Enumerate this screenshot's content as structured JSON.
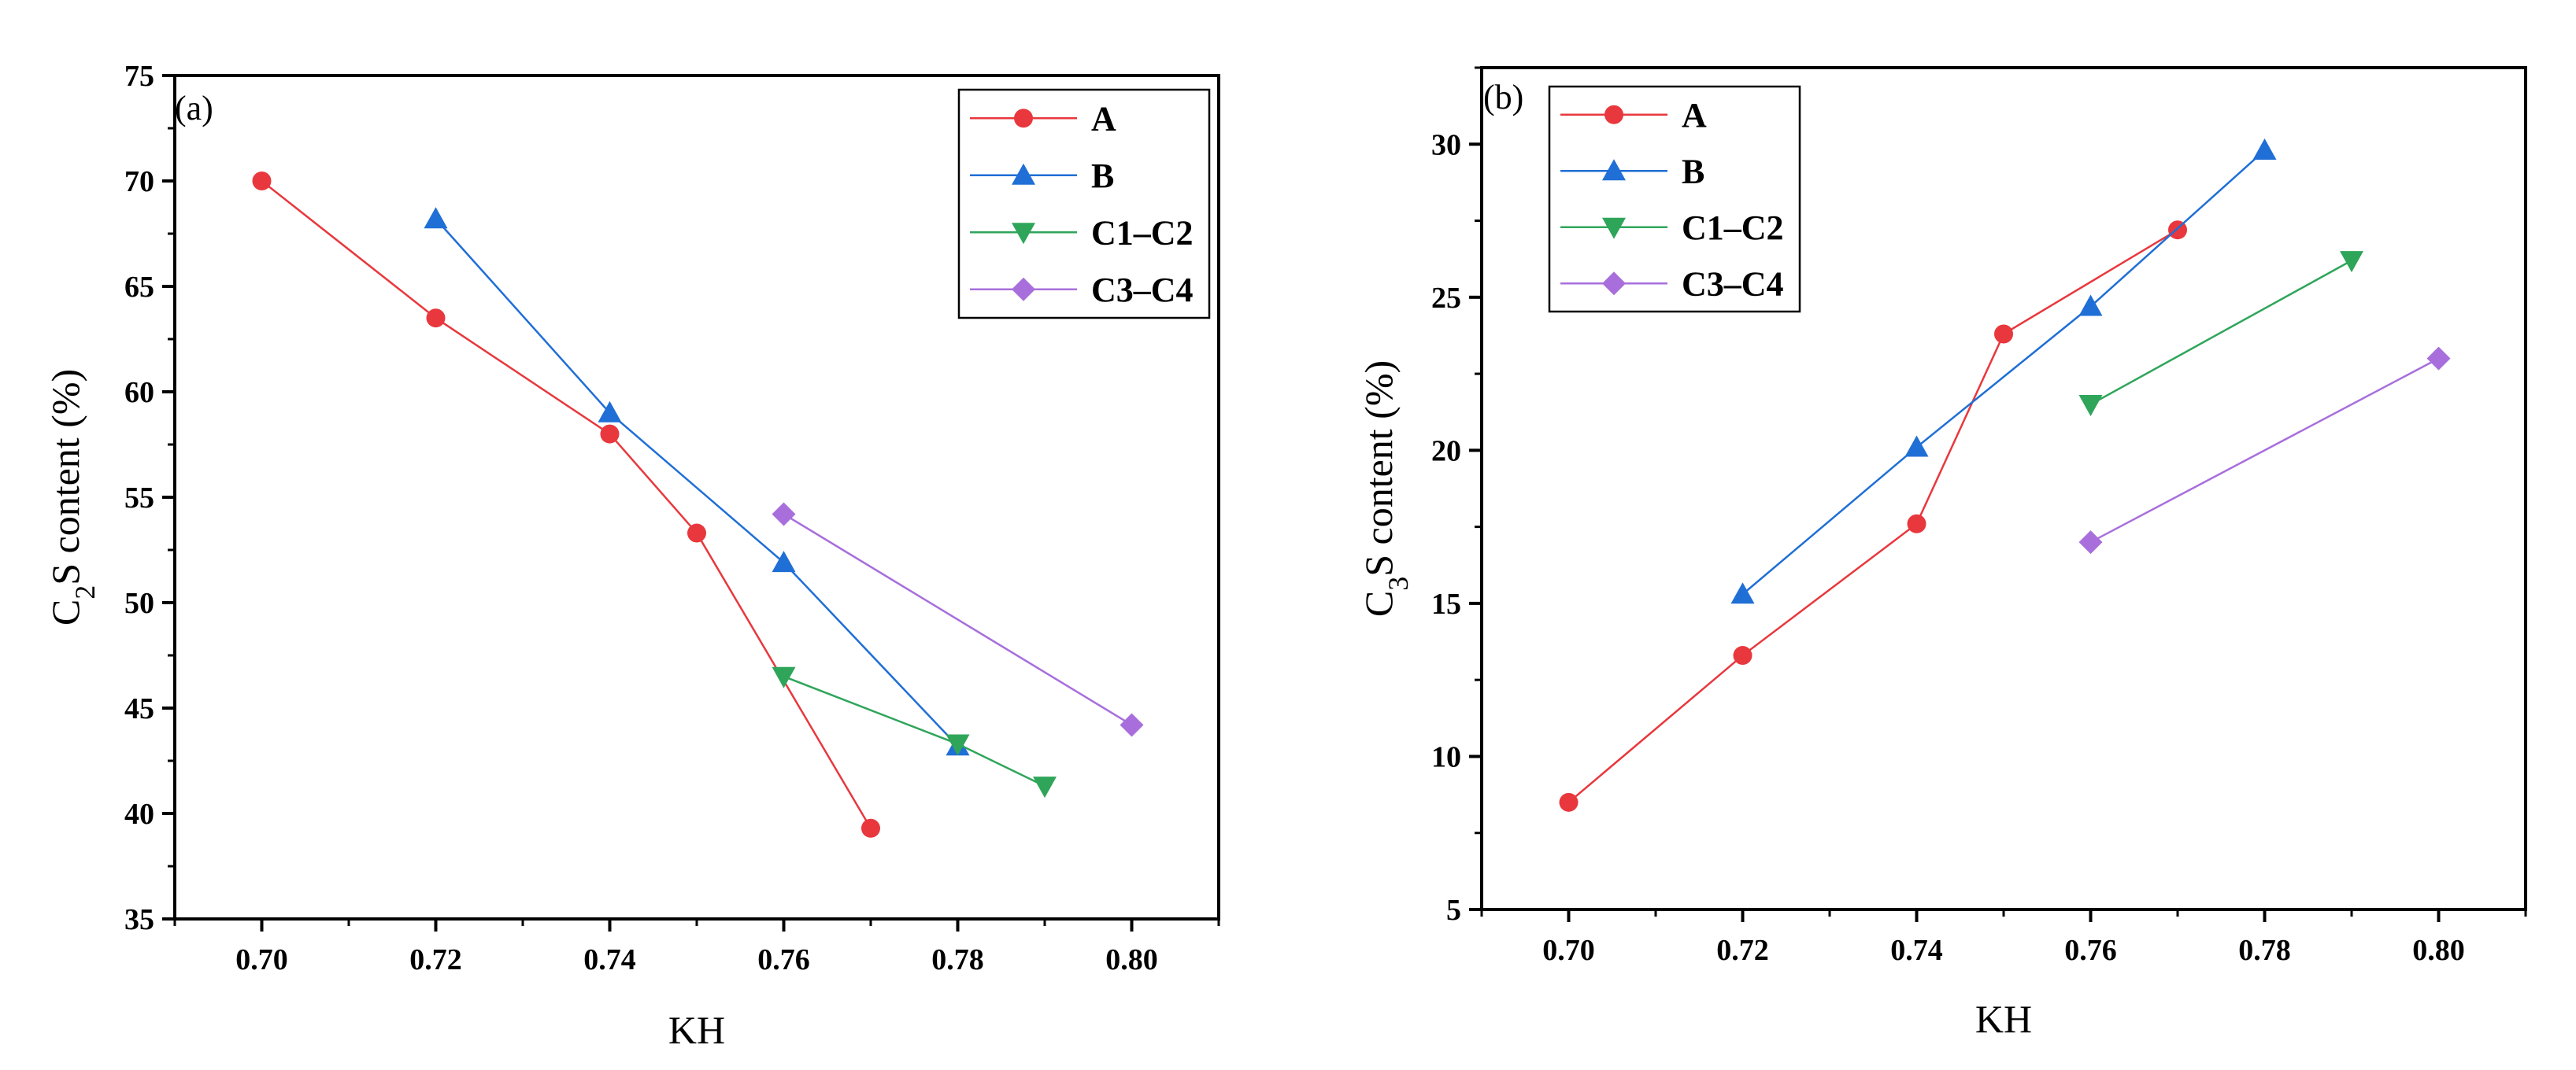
{
  "chart_data": [
    {
      "type": "line",
      "panel_label": "(a)",
      "xlabel": "KH",
      "ylabel": {
        "base": "C",
        "sub": "2",
        "rest": "S content (%)"
      },
      "xlim": [
        0.69,
        0.81
      ],
      "ylim": [
        35,
        75
      ],
      "xticks": [
        0.7,
        0.72,
        0.74,
        0.76,
        0.78,
        0.8
      ],
      "xtick_labels": [
        "0.70",
        "0.72",
        "0.74",
        "0.76",
        "0.78",
        "0.80"
      ],
      "yticks": [
        35,
        40,
        45,
        50,
        55,
        60,
        65,
        70,
        75
      ],
      "ytick_labels": [
        "35",
        "40",
        "45",
        "50",
        "55",
        "60",
        "65",
        "70",
        "75"
      ],
      "legend_position": "top-right",
      "series": [
        {
          "name": "A",
          "marker": "circle",
          "color": "#e8383d",
          "x": [
            0.7,
            0.72,
            0.74,
            0.75,
            0.77
          ],
          "y": [
            70.0,
            63.5,
            58.0,
            53.3,
            39.3
          ]
        },
        {
          "name": "B",
          "marker": "triangle-up",
          "color": "#1f6fd6",
          "x": [
            0.72,
            0.74,
            0.76,
            0.78
          ],
          "y": [
            68.2,
            59.0,
            51.9,
            43.2
          ]
        },
        {
          "name": "C1–C2",
          "marker": "triangle-down",
          "color": "#2fa55a",
          "x": [
            0.76,
            0.78,
            0.79
          ],
          "y": [
            46.5,
            43.3,
            41.3
          ]
        },
        {
          "name": "C3–C4",
          "marker": "diamond",
          "color": "#a86fdc",
          "x": [
            0.76,
            0.8
          ],
          "y": [
            54.2,
            44.2
          ]
        }
      ]
    },
    {
      "type": "line",
      "panel_label": "(b)",
      "xlabel": "KH",
      "ylabel": {
        "base": "C",
        "sub": "3",
        "rest": "S content (%)"
      },
      "xlim": [
        0.69,
        0.81
      ],
      "ylim": [
        5,
        32.5
      ],
      "xticks": [
        0.7,
        0.72,
        0.74,
        0.76,
        0.78,
        0.8
      ],
      "xtick_labels": [
        "0.70",
        "0.72",
        "0.74",
        "0.76",
        "0.78",
        "0.80"
      ],
      "yticks": [
        5,
        10,
        15,
        20,
        25,
        30
      ],
      "ytick_labels": [
        "5",
        "10",
        "15",
        "20",
        "25",
        "30"
      ],
      "legend_position": "top-left",
      "series": [
        {
          "name": "A",
          "marker": "circle",
          "color": "#e8383d",
          "x": [
            0.7,
            0.72,
            0.74,
            0.75,
            0.77
          ],
          "y": [
            8.5,
            13.3,
            17.6,
            23.8,
            27.2
          ]
        },
        {
          "name": "B",
          "marker": "triangle-up",
          "color": "#1f6fd6",
          "x": [
            0.72,
            0.74,
            0.76,
            0.78
          ],
          "y": [
            15.3,
            20.1,
            24.7,
            29.8
          ]
        },
        {
          "name": "C1–C2",
          "marker": "triangle-down",
          "color": "#2fa55a",
          "x": [
            0.76,
            0.79
          ],
          "y": [
            21.5,
            26.2
          ]
        },
        {
          "name": "C3–C4",
          "marker": "diamond",
          "color": "#a86fdc",
          "x": [
            0.76,
            0.8
          ],
          "y": [
            17.0,
            23.0
          ]
        }
      ]
    }
  ]
}
